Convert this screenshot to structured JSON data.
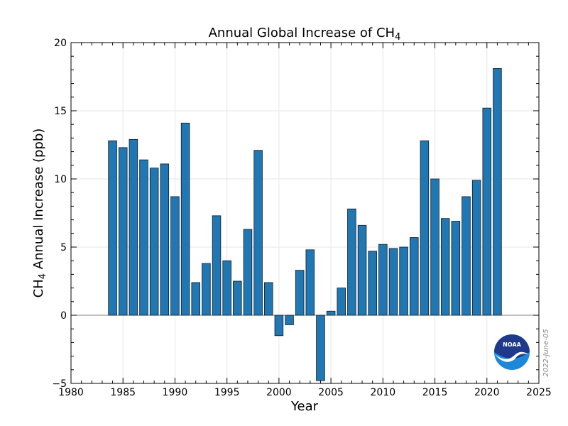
{
  "chart_data": {
    "type": "bar",
    "title_main": "Annual Global Increase of CH",
    "title_sub": "4",
    "xlabel": "Year",
    "ylabel_main": "CH",
    "ylabel_sub": "4",
    "ylabel_rest": " Annual Increase (ppb)",
    "xlim": [
      1980,
      2025
    ],
    "ylim": [
      -5,
      20
    ],
    "x_ticks": [
      1980,
      1985,
      1990,
      1995,
      2000,
      2005,
      2010,
      2015,
      2020,
      2025
    ],
    "y_ticks": [
      -5,
      0,
      5,
      10,
      15,
      20
    ],
    "grid": true,
    "bar_color": "#1f77b4",
    "edge_color": "#1a1a1a",
    "x": [
      1984,
      1985,
      1986,
      1987,
      1988,
      1989,
      1990,
      1991,
      1992,
      1993,
      1994,
      1995,
      1996,
      1997,
      1998,
      1999,
      2000,
      2001,
      2002,
      2003,
      2004,
      2005,
      2006,
      2007,
      2008,
      2009,
      2010,
      2011,
      2012,
      2013,
      2014,
      2015,
      2016,
      2017,
      2018,
      2019,
      2020,
      2021
    ],
    "values": [
      12.8,
      12.3,
      12.9,
      11.4,
      10.8,
      11.1,
      8.7,
      14.1,
      2.4,
      3.8,
      7.3,
      4.0,
      2.5,
      6.3,
      12.1,
      2.4,
      -1.5,
      -0.7,
      3.3,
      4.8,
      -4.8,
      0.3,
      2.0,
      7.8,
      6.6,
      4.7,
      5.2,
      4.9,
      5.0,
      5.7,
      12.8,
      10.0,
      7.1,
      6.9,
      8.7,
      9.9,
      15.2,
      18.1
    ]
  },
  "watermark": {
    "date": "2022-June-05",
    "logo_text": "NOAA",
    "logo_colors": {
      "top": "#1f3a8a",
      "bottom": "#1e88d8",
      "bird": "#ffffff"
    }
  }
}
